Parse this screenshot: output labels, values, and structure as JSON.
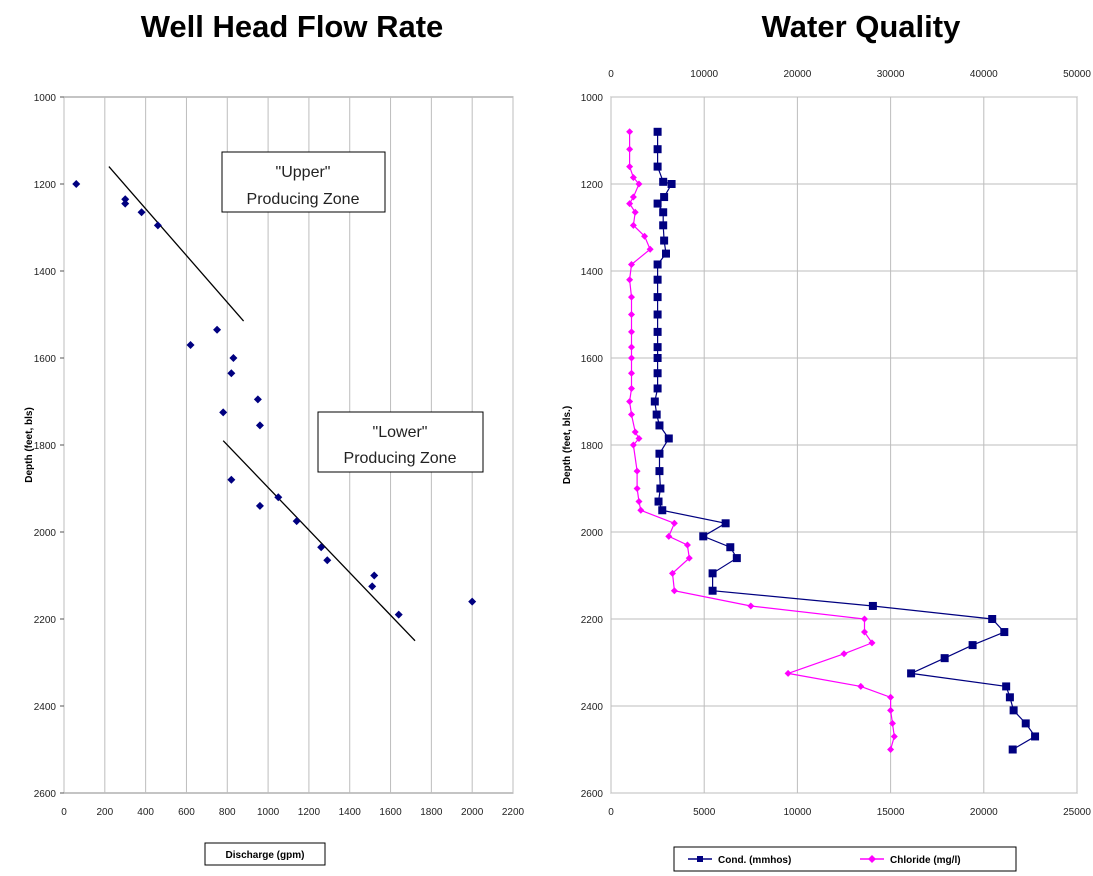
{
  "chart_data": [
    {
      "type": "scatter",
      "title": "Well Head Flow Rate",
      "xlabel": "Discharge (gpm)",
      "ylabel": "Depth (feet, bls)",
      "xlim": [
        0,
        2200
      ],
      "ylim": [
        1000,
        2600
      ],
      "y_inverted": true,
      "xticks": [
        0,
        200,
        400,
        600,
        800,
        1000,
        1200,
        1400,
        1600,
        1800,
        2000,
        2200
      ],
      "yticks": [
        1000,
        1200,
        1400,
        1600,
        1800,
        2000,
        2200,
        2400,
        2600
      ],
      "grid": "vertical",
      "series": [
        {
          "color": "#000080",
          "points": [
            [
              60,
              1200
            ],
            [
              300,
              1235
            ],
            [
              300,
              1245
            ],
            [
              380,
              1265
            ],
            [
              460,
              1295
            ],
            [
              750,
              1535
            ],
            [
              620,
              1570
            ],
            [
              830,
              1600
            ],
            [
              820,
              1635
            ],
            [
              950,
              1695
            ],
            [
              780,
              1725
            ],
            [
              960,
              1755
            ],
            [
              820,
              1880
            ],
            [
              1050,
              1920
            ],
            [
              960,
              1940
            ],
            [
              1140,
              1975
            ],
            [
              1260,
              2035
            ],
            [
              1290,
              2065
            ],
            [
              1520,
              2100
            ],
            [
              1510,
              2125
            ],
            [
              1640,
              2190
            ],
            [
              2000,
              2160
            ]
          ]
        }
      ],
      "trend_lines": [
        {
          "from": [
            220,
            1160
          ],
          "to": [
            880,
            1515
          ],
          "color": "#000000"
        },
        {
          "from": [
            780,
            1790
          ],
          "to": [
            1720,
            2250
          ],
          "color": "#000000"
        }
      ],
      "annotations": [
        {
          "lines": [
            "\"Upper\"",
            "Producing Zone"
          ]
        },
        {
          "lines": [
            "\"Lower\"",
            "Producing Zone"
          ]
        }
      ]
    },
    {
      "type": "line",
      "title": "Water Quality",
      "ylabel": "Depth (feet, bls.)",
      "ylim": [
        1000,
        2600
      ],
      "y_inverted": true,
      "yticks": [
        1000,
        1200,
        1400,
        1600,
        1800,
        2000,
        2200,
        2400,
        2600
      ],
      "x_bottom": {
        "lim": [
          0,
          25000
        ],
        "ticks": [
          0,
          5000,
          10000,
          15000,
          20000,
          25000
        ],
        "tick_labels": [
          "0",
          "5000",
          "10000",
          "15000",
          "20000",
          "25000"
        ]
      },
      "x_top": {
        "lim": [
          0,
          50000
        ],
        "ticks": [
          0,
          10000,
          20000,
          30000,
          40000,
          50000
        ],
        "tick_labels": [
          "0",
          "10000",
          "20000",
          "30000",
          "40000",
          "50000"
        ]
      },
      "grid": "both",
      "legend": "bottom",
      "series": [
        {
          "name": "Cond. (mmhos)",
          "axis": "top",
          "color": "#000080",
          "marker": "square",
          "points": [
            [
              5000,
              1080
            ],
            [
              5000,
              1120
            ],
            [
              5000,
              1160
            ],
            [
              5600,
              1195
            ],
            [
              6500,
              1200
            ],
            [
              5700,
              1230
            ],
            [
              5000,
              1245
            ],
            [
              5600,
              1265
            ],
            [
              5600,
              1295
            ],
            [
              5700,
              1330
            ],
            [
              5900,
              1360
            ],
            [
              5000,
              1385
            ],
            [
              5000,
              1420
            ],
            [
              5000,
              1460
            ],
            [
              5000,
              1500
            ],
            [
              5000,
              1540
            ],
            [
              5000,
              1575
            ],
            [
              5000,
              1600
            ],
            [
              5000,
              1635
            ],
            [
              5000,
              1670
            ],
            [
              4700,
              1700
            ],
            [
              4900,
              1730
            ],
            [
              5200,
              1755
            ],
            [
              6200,
              1785
            ],
            [
              5200,
              1820
            ],
            [
              5200,
              1860
            ],
            [
              5300,
              1900
            ],
            [
              5100,
              1930
            ],
            [
              5500,
              1950
            ],
            [
              12300,
              1980
            ],
            [
              9900,
              2010
            ],
            [
              12800,
              2035
            ],
            [
              13500,
              2060
            ],
            [
              10900,
              2095
            ],
            [
              10900,
              2135
            ],
            [
              28100,
              2170
            ],
            [
              40900,
              2200
            ],
            [
              42200,
              2230
            ],
            [
              38800,
              2260
            ],
            [
              35800,
              2290
            ],
            [
              32200,
              2325
            ],
            [
              42400,
              2355
            ],
            [
              42800,
              2380
            ],
            [
              43200,
              2410
            ],
            [
              44500,
              2440
            ],
            [
              45500,
              2470
            ],
            [
              43100,
              2500
            ]
          ]
        },
        {
          "name": "Chloride (mg/l)",
          "axis": "bottom",
          "color": "#ff00ff",
          "marker": "diamond",
          "points": [
            [
              1000,
              1080
            ],
            [
              1000,
              1120
            ],
            [
              1000,
              1160
            ],
            [
              1200,
              1185
            ],
            [
              1500,
              1200
            ],
            [
              1200,
              1230
            ],
            [
              1000,
              1245
            ],
            [
              1300,
              1265
            ],
            [
              1200,
              1295
            ],
            [
              1800,
              1320
            ],
            [
              2100,
              1350
            ],
            [
              1100,
              1385
            ],
            [
              1000,
              1420
            ],
            [
              1100,
              1460
            ],
            [
              1100,
              1500
            ],
            [
              1100,
              1540
            ],
            [
              1100,
              1575
            ],
            [
              1100,
              1600
            ],
            [
              1100,
              1635
            ],
            [
              1100,
              1670
            ],
            [
              1000,
              1700
            ],
            [
              1100,
              1730
            ],
            [
              1300,
              1770
            ],
            [
              1500,
              1785
            ],
            [
              1200,
              1800
            ],
            [
              1400,
              1860
            ],
            [
              1400,
              1900
            ],
            [
              1500,
              1930
            ],
            [
              1600,
              1950
            ],
            [
              3400,
              1980
            ],
            [
              3100,
              2010
            ],
            [
              4100,
              2030
            ],
            [
              4200,
              2060
            ],
            [
              3300,
              2095
            ],
            [
              3400,
              2135
            ],
            [
              7500,
              2170
            ],
            [
              13600,
              2200
            ],
            [
              13600,
              2230
            ],
            [
              14000,
              2255
            ],
            [
              12500,
              2280
            ],
            [
              9500,
              2325
            ],
            [
              13400,
              2355
            ],
            [
              15000,
              2380
            ],
            [
              15000,
              2410
            ],
            [
              15100,
              2440
            ],
            [
              15200,
              2470
            ],
            [
              15000,
              2500
            ]
          ]
        }
      ]
    }
  ]
}
